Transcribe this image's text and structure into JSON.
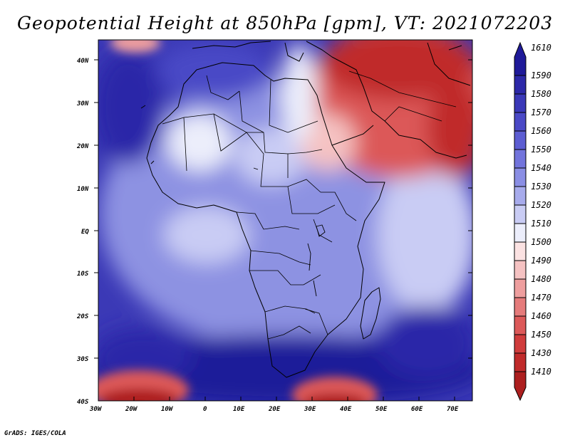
{
  "title": "Geopotential Height at 850hPa [gpm], VT: 2021072203",
  "credit": "GrADS: IGES/COLA",
  "axes": {
    "lat_labels": [
      "40N",
      "30N",
      "20N",
      "10N",
      "EQ",
      "10S",
      "20S",
      "30S",
      "40S"
    ],
    "lon_labels": [
      "30W",
      "20W",
      "10W",
      "0",
      "10E",
      "20E",
      "30E",
      "40E",
      "50E",
      "60E",
      "70E"
    ]
  },
  "colorbar": {
    "labels": [
      "1610",
      "1590",
      "1580",
      "1570",
      "1560",
      "1550",
      "1540",
      "1530",
      "1520",
      "1510",
      "1500",
      "1490",
      "1480",
      "1470",
      "1460",
      "1450",
      "1430",
      "1410"
    ],
    "colors": [
      "#1f1a99",
      "#2c28a8",
      "#3a38b8",
      "#4a49c6",
      "#5c5dd2",
      "#7274dc",
      "#8a8ee4",
      "#a7abec",
      "#c9ccf4",
      "#eceefb",
      "#fbe2e2",
      "#f5c2c2",
      "#ee9e9e",
      "#e57b7b",
      "#dc5959",
      "#d03c3c",
      "#c02a2a",
      "#ad1f1f"
    ]
  },
  "colors": {
    "ocean_deep": "#2e2aa6",
    "continent_base": "#8d92e2",
    "high_low_red": "#cc3535",
    "border": "#000000"
  }
}
